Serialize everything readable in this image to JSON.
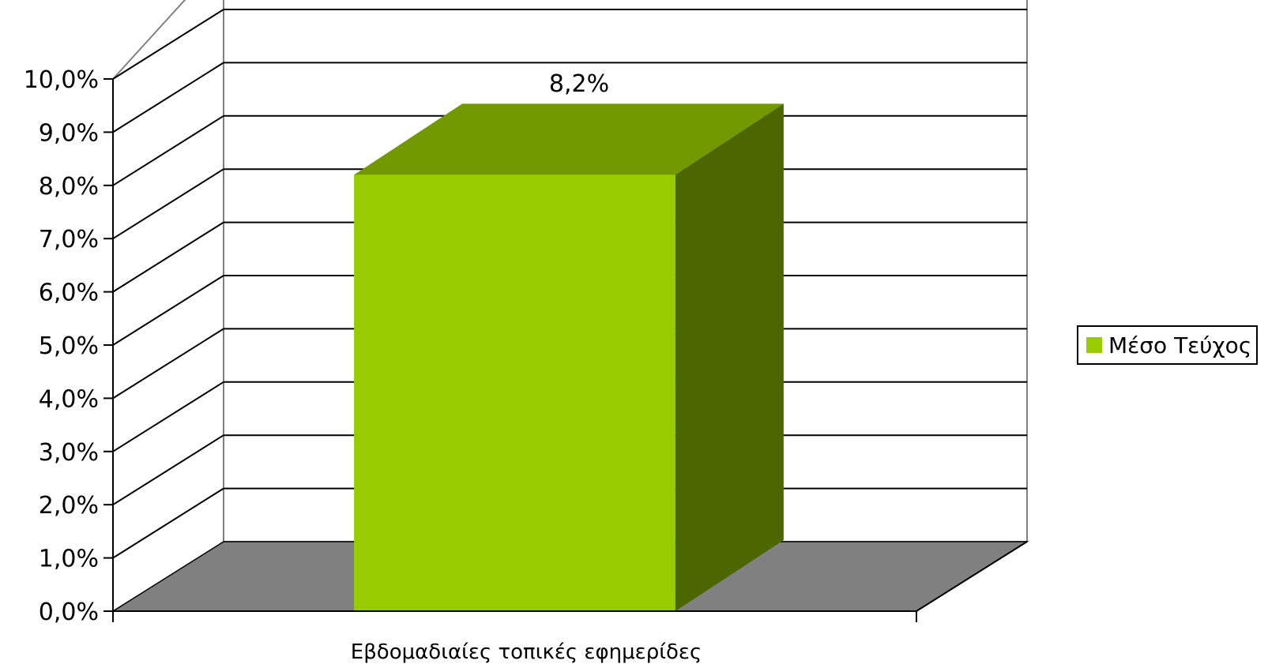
{
  "chart_data": {
    "type": "bar",
    "categories": [
      "Εβδομαδιαίες τοπικές εφημερίδες"
    ],
    "series": [
      {
        "name": "Μέσο Τεύχος",
        "values": [
          8.2
        ],
        "color": "#99cc00",
        "top_color": "#739900",
        "side_color": "#4c6600"
      }
    ],
    "data_labels": [
      "8,2%"
    ],
    "y_ticks": [
      "0,0%",
      "1,0%",
      "2,0%",
      "3,0%",
      "4,0%",
      "5,0%",
      "6,0%",
      "7,0%",
      "8,0%",
      "9,0%",
      "10,0%"
    ],
    "ylim": [
      0,
      10
    ],
    "grid": true,
    "legend": "right",
    "style": "3d",
    "floor_color": "#808080"
  }
}
